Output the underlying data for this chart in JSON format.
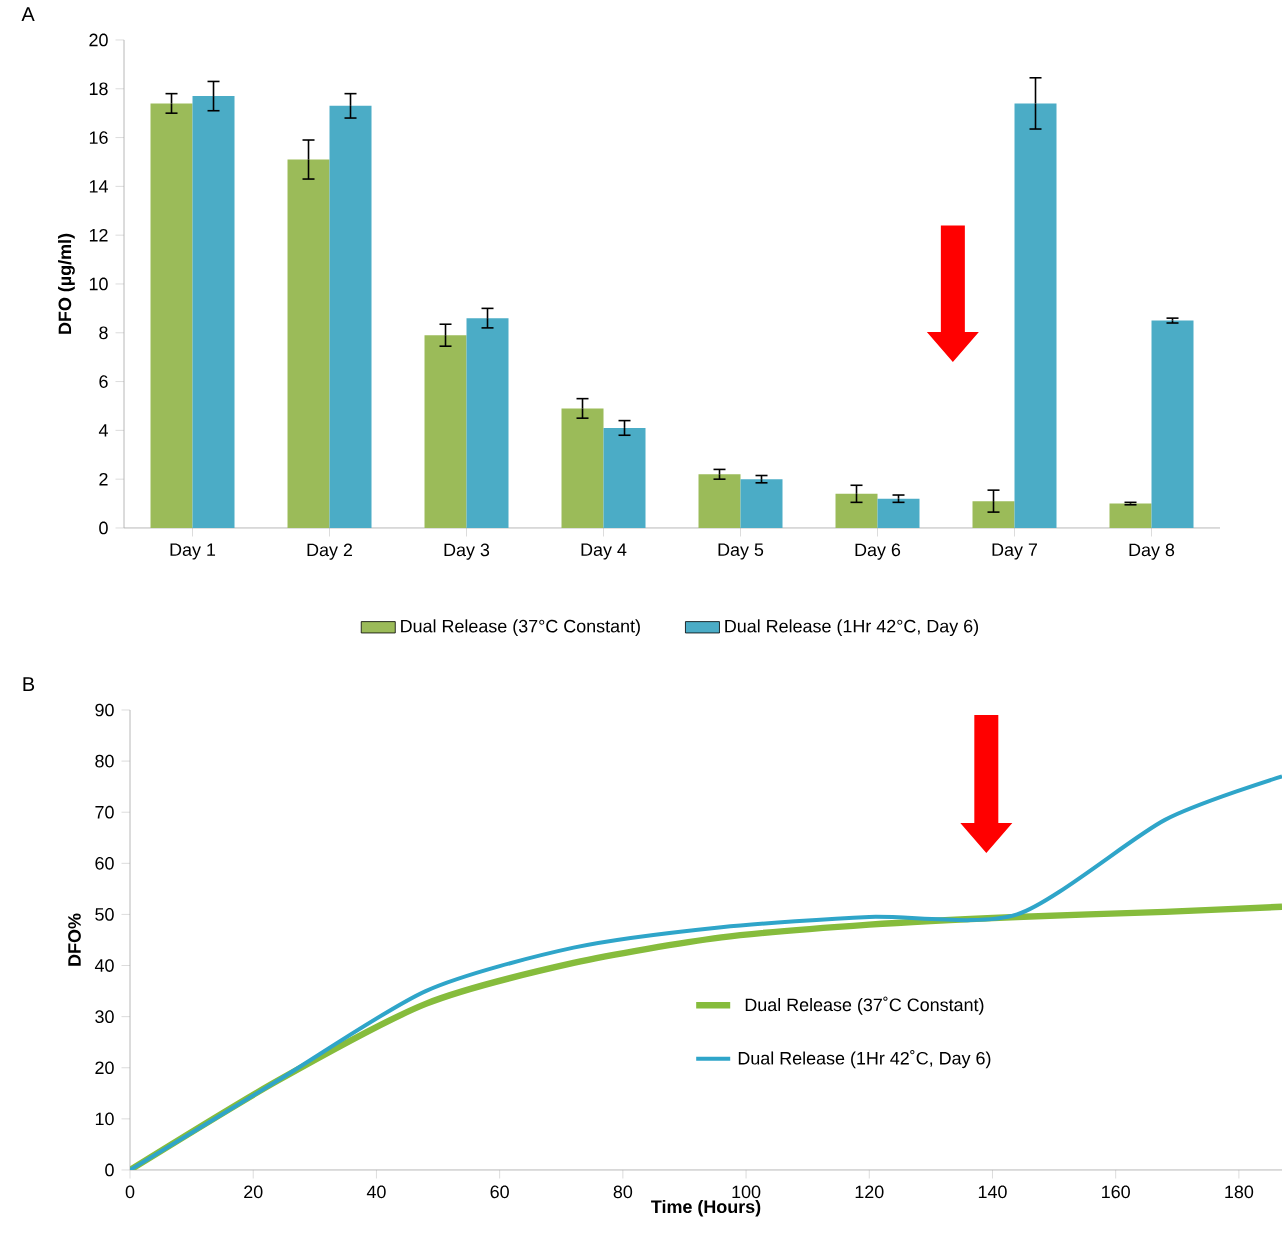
{
  "chart_data": [
    {
      "type": "bar",
      "title": "A",
      "ylabel": "DFO (µg/ml)",
      "categories": [
        "Day 1",
        "Day 2",
        "Day 3",
        "Day 4",
        "Day 5",
        "Day 6",
        "Day 7",
        "Day 8"
      ],
      "series": [
        {
          "name": "Dual Release (37°C Constant)",
          "color": "#9bbb59",
          "values": [
            17.4,
            15.1,
            7.9,
            4.9,
            2.2,
            1.4,
            1.1,
            1.0
          ],
          "errors": [
            0.4,
            0.8,
            0.45,
            0.4,
            0.2,
            0.35,
            0.45,
            0.05
          ]
        },
        {
          "name": "Dual Release (1Hr 42°C, Day 6)",
          "color": "#4bacc6",
          "values": [
            17.7,
            17.3,
            8.6,
            4.1,
            2.0,
            1.2,
            17.4,
            8.5
          ],
          "errors": [
            0.6,
            0.5,
            0.4,
            0.3,
            0.15,
            0.15,
            1.05,
            0.1
          ]
        }
      ],
      "ylim": [
        0,
        20
      ],
      "yticks": [
        0,
        2,
        4,
        6,
        8,
        10,
        12,
        14,
        16,
        18,
        20
      ],
      "legend": "bottom"
    },
    {
      "type": "line",
      "title": "B",
      "xlabel": "Time (Hours)",
      "ylabel": "DFO%",
      "x": [
        0,
        24,
        48,
        72,
        96,
        120,
        144,
        168,
        187
      ],
      "series": [
        {
          "name": "Dual Release (37˚C Constant)",
          "color": "#86bc3c",
          "values": [
            0,
            17.5,
            32.5,
            40.5,
            45.5,
            48,
            49.5,
            50.5,
            51.5
          ]
        },
        {
          "name": "Dual Release (1Hr 42˚C, Day 6)",
          "color": "#2fa5c9",
          "values": [
            0,
            17.5,
            35,
            43.5,
            47.5,
            49.5,
            50,
            68.5,
            77
          ]
        }
      ],
      "xlim": [
        0,
        187
      ],
      "xticks": [
        0,
        20,
        40,
        60,
        80,
        100,
        120,
        140,
        160,
        180
      ],
      "ylim": [
        0,
        90
      ],
      "yticks": [
        0,
        10,
        20,
        30,
        40,
        50,
        60,
        70,
        80,
        90
      ],
      "legend": "right",
      "line_style": "solid"
    }
  ]
}
